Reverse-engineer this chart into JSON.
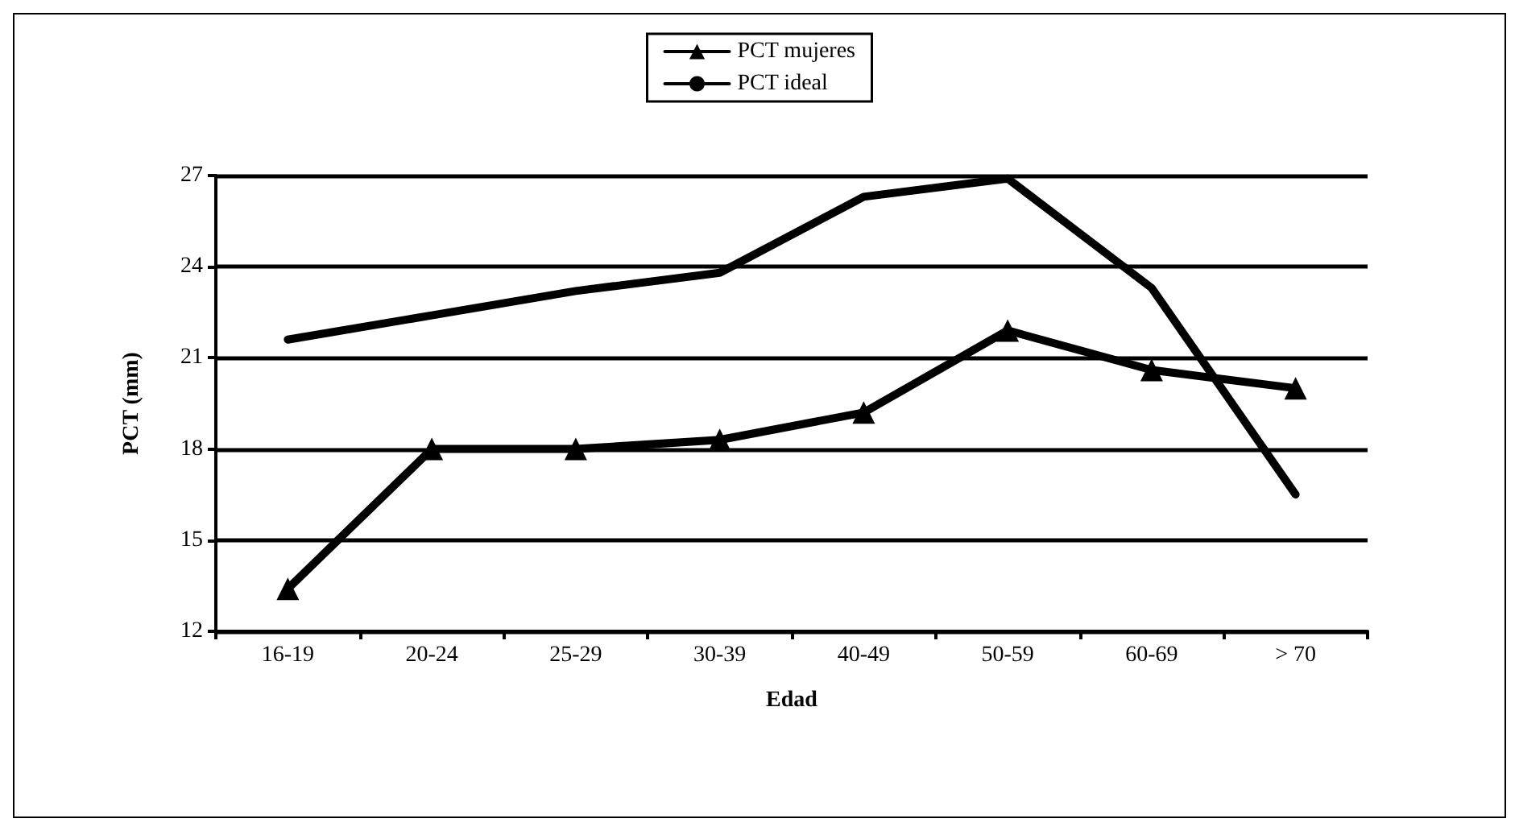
{
  "chart_data": {
    "type": "line",
    "xlabel": "Edad",
    "ylabel": "PCT (mm)",
    "categories": [
      "16-19",
      "20-24",
      "25-29",
      "30-39",
      "40-49",
      "50-59",
      "60-69",
      "> 70"
    ],
    "series": [
      {
        "name": "PCT mujeres",
        "color": "#000000",
        "marker": "triangle",
        "values": [
          13.4,
          18.0,
          18.0,
          18.3,
          19.2,
          21.9,
          20.6,
          20.0
        ]
      },
      {
        "name": "PCT ideal",
        "color": "#000000",
        "marker": "none",
        "values": [
          21.6,
          22.4,
          23.2,
          23.8,
          26.3,
          26.9,
          23.3,
          16.5
        ]
      }
    ],
    "ylim": [
      12,
      27
    ],
    "yticks": [
      12,
      15,
      18,
      21,
      24,
      27
    ],
    "grid": "y",
    "legend": "top",
    "line_style": "solid"
  }
}
